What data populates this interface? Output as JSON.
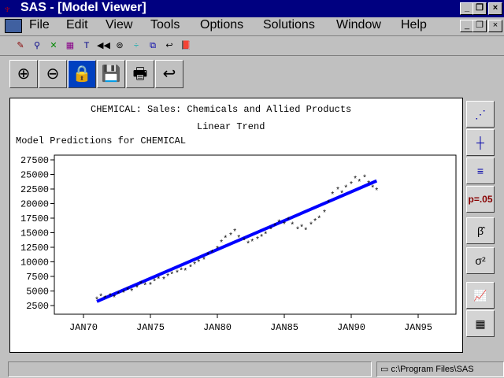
{
  "window": {
    "title": "SAS - [Model Viewer]",
    "min": "_",
    "restore": "❐",
    "close": "×"
  },
  "menu": [
    "File",
    "Edit",
    "View",
    "Tools",
    "Options",
    "Solutions",
    "Window",
    "Help"
  ],
  "toolbar_small": [
    "edit-icon",
    "variable-icon",
    "model-icon",
    "table-icon",
    "text-icon",
    "rewind-icon",
    "bookmark-icon",
    "align-icon",
    "window-icon",
    "return-icon",
    "book-icon"
  ],
  "toolbar_large": [
    {
      "name": "zoom-in",
      "glyph": "⊕"
    },
    {
      "name": "zoom-out",
      "glyph": "⊖"
    },
    {
      "name": "lock",
      "glyph": "🔒"
    },
    {
      "name": "save",
      "glyph": "💾"
    },
    {
      "name": "print",
      "glyph": "🖶"
    },
    {
      "name": "undo",
      "glyph": "↩"
    }
  ],
  "right_toolbar": [
    {
      "name": "predictions",
      "glyph": "⋰"
    },
    {
      "name": "residuals",
      "glyph": "┼"
    },
    {
      "name": "autocorrelation",
      "glyph": "≡"
    },
    {
      "name": "white-noise",
      "glyph": "p=.05"
    },
    {
      "name": "parameter-estimates",
      "glyph": "β̂"
    },
    {
      "name": "statistics",
      "glyph": "σ²"
    },
    {
      "name": "forecast-graph",
      "glyph": "📈"
    },
    {
      "name": "forecast-table",
      "glyph": "▦"
    }
  ],
  "status": {
    "path": "c:\\Program Files\\SAS"
  },
  "chart_data": {
    "type": "scatter",
    "title": "CHEMICAL: Sales: Chemicals and Allied Products",
    "subtitle": "Linear Trend",
    "ylabel": "Model Predictions for CHEMICAL",
    "xticks": [
      "JAN70",
      "JAN75",
      "JAN80",
      "JAN85",
      "JAN90",
      "JAN95"
    ],
    "xlim": [
      1970,
      1996
    ],
    "yticks": [
      2500,
      5000,
      7500,
      10000,
      12500,
      15000,
      17500,
      20000,
      22500,
      25000,
      27500
    ],
    "ylim": [
      1500,
      28500
    ],
    "trend": {
      "start": [
        1971,
        3200
      ],
      "end": [
        1991.9,
        23900
      ],
      "color": "#0000ff"
    },
    "actual": [
      [
        1971,
        3600
      ],
      [
        1971.3,
        4100
      ],
      [
        1971.6,
        3800
      ],
      [
        1972,
        4200
      ],
      [
        1972.3,
        3900
      ],
      [
        1972.6,
        4500
      ],
      [
        1973,
        4700
      ],
      [
        1973.3,
        5200
      ],
      [
        1973.6,
        5000
      ],
      [
        1974,
        5600
      ],
      [
        1974.3,
        6300
      ],
      [
        1974.6,
        6000
      ],
      [
        1975,
        6100
      ],
      [
        1975.3,
        6700
      ],
      [
        1975.6,
        7100
      ],
      [
        1976,
        7000
      ],
      [
        1976.3,
        7600
      ],
      [
        1976.6,
        7900
      ],
      [
        1977,
        8200
      ],
      [
        1977.3,
        8600
      ],
      [
        1977.6,
        8500
      ],
      [
        1978,
        9100
      ],
      [
        1978.3,
        9600
      ],
      [
        1978.6,
        10000
      ],
      [
        1979,
        10400
      ],
      [
        1979.3,
        11200
      ],
      [
        1979.6,
        11600
      ],
      [
        1980,
        12300
      ],
      [
        1980.3,
        13400
      ],
      [
        1980.6,
        14100
      ],
      [
        1981,
        14600
      ],
      [
        1981.3,
        15300
      ],
      [
        1981.6,
        14200
      ],
      [
        1982,
        13700
      ],
      [
        1982.3,
        13200
      ],
      [
        1982.6,
        13500
      ],
      [
        1983,
        13900
      ],
      [
        1983.3,
        14300
      ],
      [
        1983.6,
        14800
      ],
      [
        1984,
        15600
      ],
      [
        1984.3,
        16200
      ],
      [
        1984.6,
        16800
      ],
      [
        1985,
        16500
      ],
      [
        1985.3,
        17200
      ],
      [
        1985.6,
        16400
      ],
      [
        1986,
        15600
      ],
      [
        1986.3,
        16000
      ],
      [
        1986.6,
        15500
      ],
      [
        1987,
        16400
      ],
      [
        1987.3,
        17000
      ],
      [
        1987.6,
        17500
      ],
      [
        1988,
        18500
      ],
      [
        1988.3,
        20200
      ],
      [
        1988.6,
        21600
      ],
      [
        1989,
        22400
      ],
      [
        1989.3,
        21800
      ],
      [
        1989.6,
        22800
      ],
      [
        1990,
        23400
      ],
      [
        1990.3,
        24300
      ],
      [
        1990.6,
        23800
      ],
      [
        1991,
        24500
      ],
      [
        1991.3,
        23500
      ],
      [
        1991.6,
        22800
      ],
      [
        1991.9,
        22300
      ]
    ]
  }
}
